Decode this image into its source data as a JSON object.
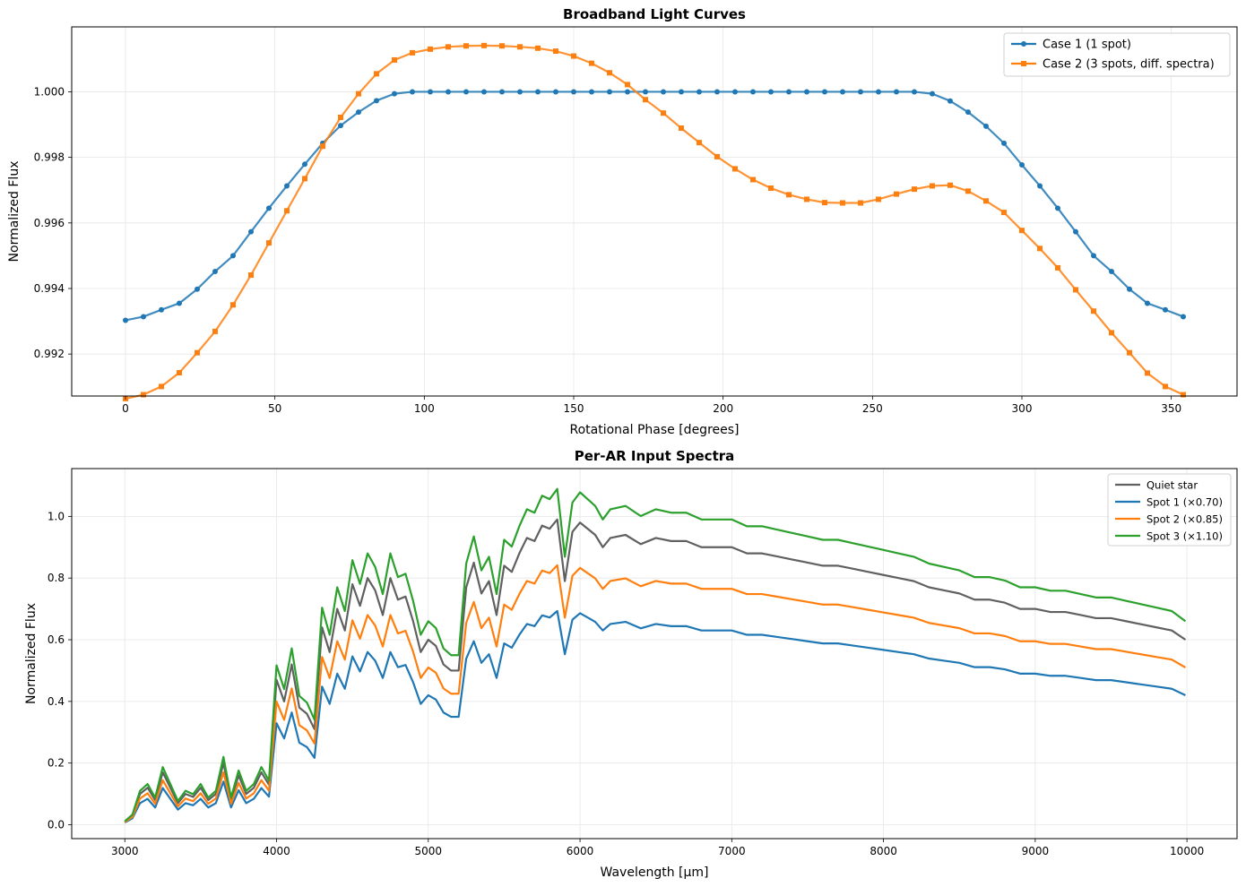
{
  "chart_data": [
    {
      "type": "line",
      "title": "Broadband Light Curves",
      "xlabel": "Rotational Phase [degrees]",
      "ylabel": "Normalized Flux",
      "xlim": [
        -18,
        372
      ],
      "ylim": [
        0.99072,
        1.00198
      ],
      "xticks": [
        0,
        50,
        100,
        150,
        200,
        250,
        300,
        350
      ],
      "yticks": [
        0.992,
        0.994,
        0.996,
        0.998,
        1.0
      ],
      "ytick_labels": [
        "0.992",
        "0.994",
        "0.996",
        "0.998",
        "1.000"
      ],
      "grid": true,
      "legend_position": "top-right",
      "x": [
        0,
        6,
        12,
        18,
        24,
        30,
        36,
        42,
        48,
        54,
        60,
        66,
        72,
        78,
        84,
        90,
        96,
        102,
        108,
        114,
        120,
        126,
        132,
        138,
        144,
        150,
        156,
        162,
        168,
        174,
        180,
        186,
        192,
        198,
        204,
        210,
        216,
        222,
        228,
        234,
        240,
        246,
        252,
        258,
        264,
        270,
        276,
        282,
        288,
        294,
        300,
        306,
        312,
        318,
        324,
        330,
        336,
        342,
        348,
        354
      ],
      "series": [
        {
          "name": "Case 1 (1 spot)",
          "color": "#1f77b4",
          "marker": "circle",
          "values": [
            0.99303,
            0.99314,
            0.99335,
            0.99355,
            0.99398,
            0.99452,
            0.995,
            0.99573,
            0.99645,
            0.99713,
            0.99779,
            0.99843,
            0.99897,
            0.99938,
            0.99973,
            0.99994,
            1.0,
            1.0,
            1.0,
            1.0,
            1.0,
            1.0,
            1.0,
            1.0,
            1.0,
            1.0,
            1.0,
            1.0,
            1.0,
            1.0,
            1.0,
            1.0,
            1.0,
            1.0,
            1.0,
            1.0,
            1.0,
            1.0,
            1.0,
            1.0,
            1.0,
            1.0,
            1.0,
            1.0,
            1.0,
            0.99994,
            0.99972,
            0.99938,
            0.99895,
            0.99843,
            0.99777,
            0.99713,
            0.99645,
            0.99573,
            0.995,
            0.99452,
            0.99398,
            0.99355,
            0.99335,
            0.99314
          ]
        },
        {
          "name": "Case 2 (3 spots, diff. spectra)",
          "color": "#ff7f0e",
          "marker": "square",
          "values": [
            0.99064,
            0.99076,
            0.99101,
            0.99143,
            0.99204,
            0.99269,
            0.9935,
            0.99441,
            0.99539,
            0.99637,
            0.99735,
            0.99834,
            0.99922,
            0.99994,
            1.00055,
            1.00097,
            1.00119,
            1.0013,
            1.00137,
            1.0014,
            1.00141,
            1.0014,
            1.00137,
            1.00133,
            1.00124,
            1.00109,
            1.00087,
            1.00058,
            1.00022,
            0.99976,
            0.99935,
            0.99889,
            0.99845,
            0.99802,
            0.99765,
            0.99732,
            0.99706,
            0.99686,
            0.99672,
            0.99662,
            0.99661,
            0.99661,
            0.99672,
            0.99688,
            0.99703,
            0.99713,
            0.99715,
            0.99697,
            0.99667,
            0.99632,
            0.99577,
            0.99522,
            0.99463,
            0.99396,
            0.99331,
            0.99265,
            0.99204,
            0.99142,
            0.99101,
            0.99076
          ]
        }
      ]
    },
    {
      "type": "line",
      "title": "Per-AR Input Spectra",
      "xlabel": "Wavelength [µm]",
      "ylabel": "Normalized Flux",
      "xlim": [
        2650,
        10330
      ],
      "ylim": [
        -0.045,
        1.155
      ],
      "xticks": [
        3000,
        4000,
        5000,
        6000,
        7000,
        8000,
        9000,
        10000
      ],
      "yticks": [
        0.0,
        0.2,
        0.4,
        0.6,
        0.8,
        1.0
      ],
      "ytick_labels": [
        "0.0",
        "0.2",
        "0.4",
        "0.6",
        "0.8",
        "1.0"
      ],
      "grid": true,
      "legend_position": "top-right",
      "x": [
        3000,
        3050,
        3100,
        3150,
        3200,
        3250,
        3300,
        3350,
        3400,
        3450,
        3500,
        3550,
        3600,
        3650,
        3700,
        3750,
        3800,
        3850,
        3900,
        3950,
        4000,
        4050,
        4100,
        4150,
        4200,
        4250,
        4300,
        4350,
        4400,
        4450,
        4500,
        4550,
        4600,
        4650,
        4700,
        4750,
        4800,
        4850,
        4900,
        4950,
        5000,
        5050,
        5100,
        5150,
        5200,
        5250,
        5300,
        5350,
        5400,
        5450,
        5500,
        5550,
        5600,
        5650,
        5700,
        5750,
        5800,
        5850,
        5900,
        5950,
        6000,
        6050,
        6100,
        6150,
        6200,
        6300,
        6400,
        6500,
        6600,
        6700,
        6800,
        6900,
        7000,
        7100,
        7200,
        7300,
        7400,
        7500,
        7600,
        7700,
        7800,
        7900,
        8000,
        8100,
        8200,
        8300,
        8400,
        8500,
        8600,
        8700,
        8800,
        8900,
        9000,
        9100,
        9200,
        9300,
        9400,
        9500,
        9600,
        9700,
        9800,
        9900,
        9990
      ],
      "series": [
        {
          "name": "Quiet star",
          "color": "#606060",
          "values": [
            0.01,
            0.03,
            0.1,
            0.12,
            0.08,
            0.17,
            0.12,
            0.07,
            0.1,
            0.09,
            0.12,
            0.08,
            0.1,
            0.2,
            0.08,
            0.16,
            0.1,
            0.12,
            0.17,
            0.13,
            0.47,
            0.4,
            0.52,
            0.38,
            0.36,
            0.31,
            0.64,
            0.56,
            0.7,
            0.63,
            0.78,
            0.71,
            0.8,
            0.76,
            0.68,
            0.8,
            0.73,
            0.74,
            0.66,
            0.56,
            0.6,
            0.58,
            0.52,
            0.5,
            0.5,
            0.77,
            0.85,
            0.75,
            0.79,
            0.68,
            0.84,
            0.82,
            0.88,
            0.93,
            0.92,
            0.97,
            0.96,
            0.99,
            0.79,
            0.95,
            0.98,
            0.96,
            0.94,
            0.9,
            0.93,
            0.94,
            0.91,
            0.93,
            0.92,
            0.92,
            0.9,
            0.9,
            0.9,
            0.88,
            0.88,
            0.87,
            0.86,
            0.85,
            0.84,
            0.84,
            0.83,
            0.82,
            0.81,
            0.8,
            0.79,
            0.77,
            0.76,
            0.75,
            0.73,
            0.73,
            0.72,
            0.7,
            0.7,
            0.69,
            0.69,
            0.68,
            0.67,
            0.67,
            0.66,
            0.65,
            0.64,
            0.63,
            0.6
          ]
        },
        {
          "name": "Spot 1 (×0.70)",
          "color": "#1f77b4",
          "values": [
            0.007,
            0.021,
            0.07,
            0.084,
            0.056,
            0.119,
            0.084,
            0.049,
            0.07,
            0.063,
            0.084,
            0.056,
            0.07,
            0.14,
            0.056,
            0.112,
            0.07,
            0.084,
            0.119,
            0.091,
            0.329,
            0.28,
            0.364,
            0.266,
            0.252,
            0.217,
            0.448,
            0.392,
            0.49,
            0.441,
            0.546,
            0.497,
            0.56,
            0.532,
            0.476,
            0.56,
            0.511,
            0.518,
            0.462,
            0.392,
            0.42,
            0.406,
            0.364,
            0.35,
            0.35,
            0.539,
            0.595,
            0.525,
            0.553,
            0.476,
            0.588,
            0.574,
            0.616,
            0.651,
            0.644,
            0.679,
            0.672,
            0.693,
            0.553,
            0.665,
            0.686,
            0.672,
            0.658,
            0.63,
            0.651,
            0.658,
            0.637,
            0.651,
            0.644,
            0.644,
            0.63,
            0.63,
            0.63,
            0.616,
            0.616,
            0.609,
            0.602,
            0.595,
            0.588,
            0.588,
            0.581,
            0.574,
            0.567,
            0.56,
            0.553,
            0.539,
            0.532,
            0.525,
            0.511,
            0.511,
            0.504,
            0.49,
            0.49,
            0.483,
            0.483,
            0.476,
            0.469,
            0.469,
            0.462,
            0.455,
            0.448,
            0.441,
            0.42
          ]
        },
        {
          "name": "Spot 2 (×0.85)",
          "color": "#ff7f0e",
          "values": [
            0.0085,
            0.0255,
            0.085,
            0.102,
            0.068,
            0.1445,
            0.102,
            0.0595,
            0.085,
            0.0765,
            0.102,
            0.068,
            0.085,
            0.17,
            0.068,
            0.136,
            0.085,
            0.102,
            0.1445,
            0.1105,
            0.3995,
            0.34,
            0.442,
            0.323,
            0.306,
            0.2635,
            0.544,
            0.476,
            0.595,
            0.5355,
            0.663,
            0.6035,
            0.68,
            0.646,
            0.578,
            0.68,
            0.6205,
            0.629,
            0.561,
            0.476,
            0.51,
            0.493,
            0.442,
            0.425,
            0.425,
            0.6545,
            0.7225,
            0.6375,
            0.6715,
            0.578,
            0.714,
            0.697,
            0.748,
            0.7905,
            0.782,
            0.8245,
            0.816,
            0.8415,
            0.6715,
            0.8075,
            0.833,
            0.816,
            0.799,
            0.765,
            0.7905,
            0.799,
            0.7735,
            0.7905,
            0.782,
            0.782,
            0.765,
            0.765,
            0.765,
            0.748,
            0.748,
            0.7395,
            0.731,
            0.7225,
            0.714,
            0.714,
            0.7055,
            0.697,
            0.6885,
            0.68,
            0.6715,
            0.6545,
            0.646,
            0.6375,
            0.6205,
            0.6205,
            0.612,
            0.595,
            0.595,
            0.5865,
            0.5865,
            0.578,
            0.5695,
            0.5695,
            0.561,
            0.5525,
            0.544,
            0.5355,
            0.51
          ]
        },
        {
          "name": "Spot 3 (×1.10)",
          "color": "#2ca02c",
          "values": [
            0.011,
            0.033,
            0.11,
            0.132,
            0.088,
            0.187,
            0.132,
            0.077,
            0.11,
            0.099,
            0.132,
            0.088,
            0.11,
            0.22,
            0.088,
            0.176,
            0.11,
            0.132,
            0.187,
            0.143,
            0.517,
            0.44,
            0.572,
            0.418,
            0.396,
            0.341,
            0.704,
            0.616,
            0.77,
            0.693,
            0.858,
            0.781,
            0.88,
            0.836,
            0.748,
            0.88,
            0.803,
            0.814,
            0.726,
            0.616,
            0.66,
            0.638,
            0.572,
            0.55,
            0.55,
            0.847,
            0.935,
            0.825,
            0.869,
            0.748,
            0.924,
            0.902,
            0.968,
            1.023,
            1.012,
            1.067,
            1.056,
            1.089,
            0.869,
            1.045,
            1.078,
            1.056,
            1.034,
            0.99,
            1.023,
            1.034,
            1.001,
            1.023,
            1.012,
            1.012,
            0.99,
            0.99,
            0.99,
            0.968,
            0.968,
            0.957,
            0.946,
            0.935,
            0.924,
            0.924,
            0.913,
            0.902,
            0.891,
            0.88,
            0.869,
            0.847,
            0.836,
            0.825,
            0.803,
            0.803,
            0.792,
            0.77,
            0.77,
            0.759,
            0.759,
            0.748,
            0.737,
            0.737,
            0.726,
            0.715,
            0.704,
            0.693,
            0.66
          ]
        }
      ]
    }
  ]
}
